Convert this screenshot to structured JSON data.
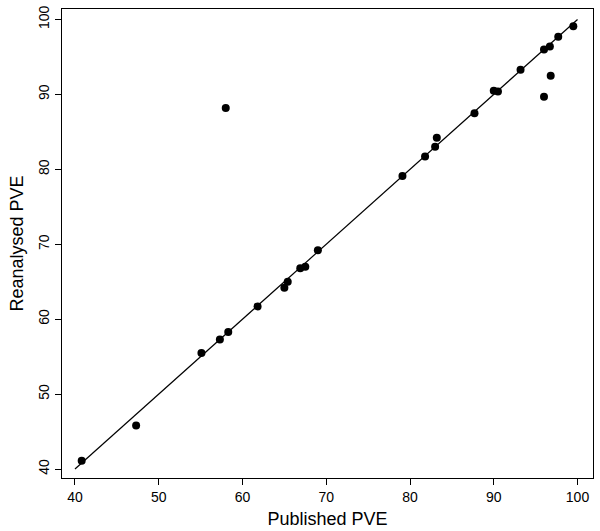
{
  "chart_data": {
    "type": "scatter",
    "x_label": "Published PVE",
    "y_label": "Reanalysed PVE",
    "series": [
      {
        "type": "scatter",
        "color": "#000000",
        "marker": "circle",
        "x": [
          40.8,
          47.3,
          55.1,
          57.3,
          58.0,
          58.3,
          61.8,
          65.0,
          65.4,
          66.9,
          67.5,
          69.0,
          79.1,
          81.8,
          83.0,
          83.2,
          87.7,
          90.0,
          90.5,
          93.2,
          96.0,
          96.0,
          96.7,
          96.8,
          97.7,
          99.5
        ],
        "values": [
          41.1,
          45.8,
          55.5,
          57.3,
          88.2,
          58.3,
          61.7,
          64.2,
          65.0,
          66.8,
          67.0,
          69.2,
          79.1,
          81.7,
          83.0,
          84.2,
          87.5,
          90.5,
          90.4,
          93.3,
          96.0,
          89.7,
          96.4,
          92.5,
          97.7,
          99.1
        ]
      },
      {
        "type": "line",
        "color": "#000000",
        "line_style": "solid",
        "x": [
          40,
          100
        ],
        "values": [
          40,
          100
        ]
      }
    ],
    "xlim": [
      38.45,
      101.85
    ],
    "ylim": [
      38.8,
      101.4
    ],
    "xticks": [
      40,
      50,
      60,
      70,
      80,
      90,
      100
    ],
    "yticks": [
      40,
      50,
      60,
      70,
      80,
      90,
      100
    ],
    "grid": false
  }
}
